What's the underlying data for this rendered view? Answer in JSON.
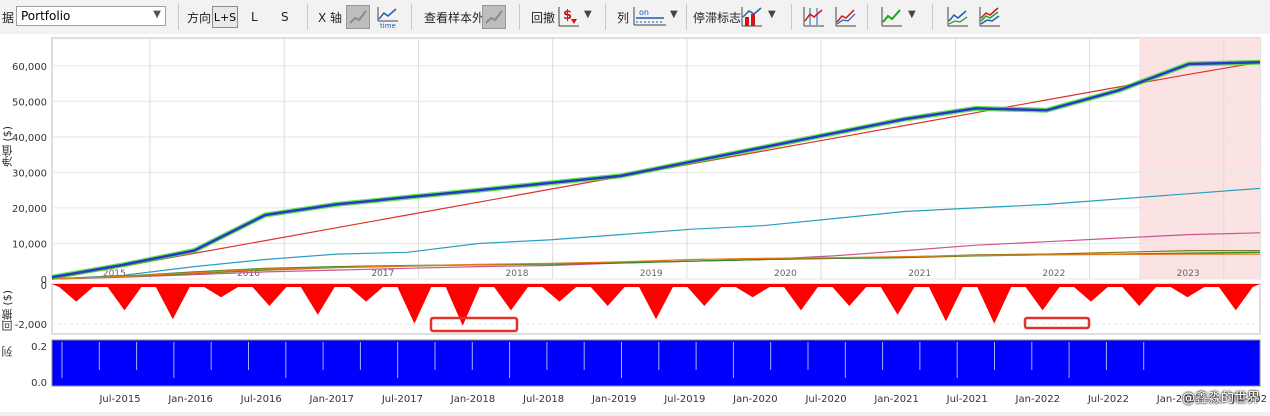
{
  "toolbar": {
    "strategy_prefix": "据",
    "strategy_value": "Portfolio",
    "direction_label": "方向",
    "direction_options": [
      "L+S",
      "L",
      "S"
    ],
    "x_axis_label": "X 轴",
    "out_of_sample_label": "查看样本外",
    "drawdown_label": "回撤",
    "columns_label": "列",
    "stagnation_label": "停滞标志",
    "time_label": "time",
    "on_label": "on"
  },
  "main_chart": {
    "ylabel": "净值 ($)",
    "yticks": [
      "0",
      "10,000",
      "20,000",
      "30,000",
      "40,000",
      "50,000",
      "60,000"
    ],
    "year_labels": [
      "2015",
      "2016",
      "2017",
      "2018",
      "2019",
      "2020",
      "2021",
      "2022",
      "2023"
    ]
  },
  "drawdown_chart": {
    "ylabel": "回撤 ($)",
    "yticks": [
      "0",
      "-2,000"
    ]
  },
  "columns_chart": {
    "ylabel": "列",
    "yticks": [
      "0.2",
      "0.0"
    ]
  },
  "x_axis_dates": [
    "Jul-2015",
    "Jan-2016",
    "Jul-2016",
    "Jan-2017",
    "Jul-2017",
    "Jan-2018",
    "Jul-2018",
    "Jan-2019",
    "Jul-2019",
    "Jan-2020",
    "Jul-2020",
    "Jan-2021",
    "Jul-2021",
    "Jan-2022",
    "Jul-2022",
    "Jan-2023",
    "Jul-202"
  ],
  "watermark": "@鑫淼的世界",
  "colors": {
    "portfolio": "#2a37c9",
    "portfolio_highlight": "#3fdc2a",
    "trend": "#e0332b",
    "series_cyan": "#2b9fbf",
    "series_pink": "#c9558f",
    "series_olive": "#7a7a20",
    "series_green": "#2f8a2f",
    "series_orange": "#e57a16",
    "drawdown": "#ff0000",
    "columns": "#0000ff",
    "oos_shade": "#fbe3e3"
  },
  "chart_data": {
    "type": "line",
    "x": [
      "Jan-2015",
      "Jul-2015",
      "Jan-2016",
      "Jul-2016",
      "Jan-2017",
      "Jul-2017",
      "Jan-2018",
      "Jul-2018",
      "Jan-2019",
      "Jul-2019",
      "Jan-2020",
      "Jul-2020",
      "Jan-2021",
      "Jul-2021",
      "Jan-2022",
      "Jul-2022",
      "Jan-2023",
      "Jun-2023"
    ],
    "ylim": [
      0,
      65000
    ],
    "series": [
      {
        "values": [
          500,
          4000,
          8000,
          18000,
          21000,
          23000,
          25000,
          27000,
          29000,
          33000,
          37000,
          41000,
          45000,
          48000,
          47500,
          53000,
          60500,
          61000
        ]
      },
      {
        "values": [
          0,
          3600,
          7200,
          10800,
          14400,
          18000,
          21600,
          25200,
          28800,
          32400,
          36000,
          39600,
          43200,
          46800,
          50400,
          54000,
          57600,
          61000
        ]
      },
      {
        "values": [
          0,
          1000,
          3500,
          5500,
          7000,
          7500,
          10000,
          11000,
          12500,
          14000,
          15000,
          17000,
          19000,
          20000,
          21000,
          22500,
          24000,
          25500
        ]
      },
      {
        "values": [
          0,
          500,
          1200,
          2000,
          2500,
          3000,
          3500,
          3800,
          4500,
          5000,
          5500,
          6500,
          8000,
          9500,
          10500,
          11500,
          12500,
          13000
        ]
      },
      {
        "values": [
          0,
          600,
          1500,
          2500,
          3200,
          3600,
          4000,
          4300,
          4600,
          5000,
          5500,
          5800,
          6200,
          6800,
          7000,
          7500,
          8000,
          8000
        ]
      },
      {
        "values": [
          0,
          800,
          2000,
          3000,
          3500,
          3800,
          4000,
          4200,
          4500,
          5000,
          5500,
          5800,
          6000,
          6500,
          6800,
          7000,
          7300,
          7500
        ]
      },
      {
        "values": [
          0,
          700,
          1800,
          2800,
          3300,
          3700,
          4100,
          4400,
          4800,
          5500,
          5800,
          6000,
          6300,
          6600,
          6800,
          6900,
          7000,
          7000
        ]
      }
    ],
    "drawdown_ylim": [
      -2500,
      0
    ],
    "columns_ylim": [
      0,
      0.3
    ]
  }
}
